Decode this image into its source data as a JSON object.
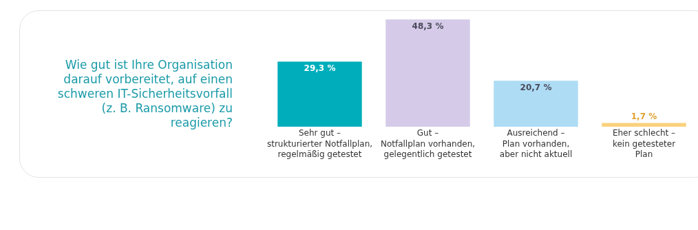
{
  "chart_data": {
    "type": "bar",
    "title": "Wie gut ist Ihre Organisation darauf vorbereitet, auf einen schweren IT-Sicherheitsvorfall (z. B. Ransomware) zu reagieren?",
    "categories": [
      "Sehr gut –\nstrukturierter Notfallplan,\nregelmäßig getestet",
      "Gut –\nNotfallplan vorhanden,\ngelegentlich getestet",
      "Ausreichend –\nPlan vorhanden,\naber nicht aktuell",
      "Eher schlecht –\nkein getesteter\nPlan"
    ],
    "values": [
      29.3,
      48.3,
      20.7,
      1.7
    ],
    "colors": [
      "#00aebb",
      "#d5cbe9",
      "#aedcf5",
      "#f9d27e"
    ],
    "value_labels": [
      "29,3 %",
      "48,3 %",
      "20,7 %",
      "1,7 %"
    ],
    "grid": false,
    "legend": false
  }
}
